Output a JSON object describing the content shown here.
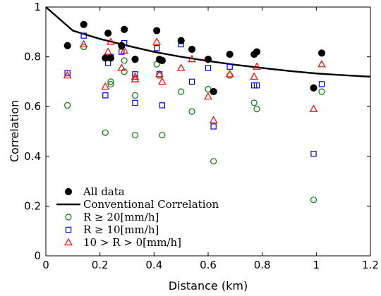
{
  "chart_data": {
    "type": "scatter",
    "xlabel": "Distance (km)",
    "ylabel": "Correlation",
    "xlim": [
      0,
      1.2
    ],
    "ylim": [
      0,
      1
    ],
    "xticks": [
      0,
      0.2,
      0.4,
      0.6,
      0.8,
      1,
      1.2
    ],
    "xtick_labels": [
      "0",
      "0.2",
      "0.4",
      "0.6",
      "0.8",
      "1",
      "1.2"
    ],
    "yticks": [
      0,
      0.2,
      0.4,
      0.6,
      0.8,
      1
    ],
    "ytick_labels": [
      "0",
      "0.2",
      "0.4",
      "0.6",
      "0.8",
      "1"
    ],
    "grid": false,
    "legend_position": "bottom-left",
    "series": [
      {
        "name": "All data",
        "marker": "filled-circle",
        "color": "#000000",
        "points": [
          [
            0.08,
            0.845
          ],
          [
            0.14,
            0.93
          ],
          [
            0.22,
            0.795
          ],
          [
            0.23,
            0.895
          ],
          [
            0.24,
            0.795
          ],
          [
            0.28,
            0.845
          ],
          [
            0.29,
            0.91
          ],
          [
            0.33,
            0.79
          ],
          [
            0.41,
            0.905
          ],
          [
            0.42,
            0.79
          ],
          [
            0.43,
            0.785
          ],
          [
            0.5,
            0.865
          ],
          [
            0.54,
            0.83
          ],
          [
            0.6,
            0.79
          ],
          [
            0.62,
            0.66
          ],
          [
            0.68,
            0.81
          ],
          [
            0.77,
            0.81
          ],
          [
            0.78,
            0.82
          ],
          [
            0.99,
            0.675
          ],
          [
            1.02,
            0.815
          ]
        ]
      },
      {
        "name": "Conventional Correlation",
        "marker": "line",
        "color": "#000000",
        "points": [
          [
            0,
            1.0
          ],
          [
            0.1,
            0.905
          ],
          [
            0.2,
            0.872
          ],
          [
            0.3,
            0.845
          ],
          [
            0.4,
            0.82
          ],
          [
            0.5,
            0.8
          ],
          [
            0.6,
            0.783
          ],
          [
            0.7,
            0.768
          ],
          [
            0.8,
            0.755
          ],
          [
            0.9,
            0.743
          ],
          [
            1.0,
            0.733
          ],
          [
            1.1,
            0.726
          ],
          [
            1.2,
            0.72
          ]
        ]
      },
      {
        "name": "R ≥ 20[mm/h]",
        "marker": "open-circle",
        "color": "#008000",
        "points": [
          [
            0.08,
            0.605
          ],
          [
            0.14,
            0.84
          ],
          [
            0.22,
            0.495
          ],
          [
            0.24,
            0.69
          ],
          [
            0.24,
            0.7
          ],
          [
            0.29,
            0.74
          ],
          [
            0.29,
            0.785
          ],
          [
            0.33,
            0.485
          ],
          [
            0.33,
            0.645
          ],
          [
            0.41,
            0.77
          ],
          [
            0.42,
            0.725
          ],
          [
            0.43,
            0.485
          ],
          [
            0.5,
            0.66
          ],
          [
            0.54,
            0.58
          ],
          [
            0.6,
            0.67
          ],
          [
            0.62,
            0.38
          ],
          [
            0.68,
            0.725
          ],
          [
            0.77,
            0.615
          ],
          [
            0.78,
            0.59
          ],
          [
            0.99,
            0.225
          ],
          [
            1.02,
            0.66
          ]
        ]
      },
      {
        "name": "R ≥ 10[mm/h]",
        "marker": "open-square",
        "color": "#0000ff",
        "points": [
          [
            0.08,
            0.735
          ],
          [
            0.14,
            0.885
          ],
          [
            0.22,
            0.645
          ],
          [
            0.23,
            0.775
          ],
          [
            0.24,
            0.8
          ],
          [
            0.28,
            0.82
          ],
          [
            0.29,
            0.855
          ],
          [
            0.33,
            0.615
          ],
          [
            0.33,
            0.73
          ],
          [
            0.41,
            0.835
          ],
          [
            0.42,
            0.73
          ],
          [
            0.43,
            0.605
          ],
          [
            0.5,
            0.85
          ],
          [
            0.54,
            0.7
          ],
          [
            0.6,
            0.755
          ],
          [
            0.62,
            0.52
          ],
          [
            0.68,
            0.76
          ],
          [
            0.77,
            0.685
          ],
          [
            0.78,
            0.685
          ],
          [
            0.99,
            0.41
          ],
          [
            1.02,
            0.69
          ]
        ]
      },
      {
        "name": "10 > R > 0[mm/h]",
        "marker": "open-triangle",
        "color": "#ff0000",
        "points": [
          [
            0.08,
            0.725
          ],
          [
            0.14,
            0.85
          ],
          [
            0.22,
            0.68
          ],
          [
            0.23,
            0.82
          ],
          [
            0.24,
            0.86
          ],
          [
            0.28,
            0.755
          ],
          [
            0.29,
            0.825
          ],
          [
            0.33,
            0.71
          ],
          [
            0.33,
            0.72
          ],
          [
            0.41,
            0.86
          ],
          [
            0.42,
            0.73
          ],
          [
            0.43,
            0.7
          ],
          [
            0.5,
            0.755
          ],
          [
            0.54,
            0.79
          ],
          [
            0.6,
            0.64
          ],
          [
            0.62,
            0.545
          ],
          [
            0.68,
            0.73
          ],
          [
            0.77,
            0.72
          ],
          [
            0.78,
            0.76
          ],
          [
            0.99,
            0.59
          ],
          [
            1.02,
            0.77
          ]
        ]
      }
    ]
  }
}
